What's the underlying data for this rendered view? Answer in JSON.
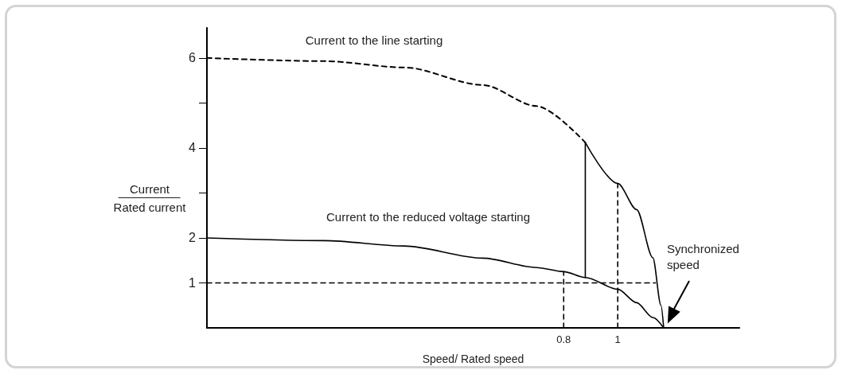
{
  "chart_data": {
    "type": "line",
    "xlabel": "Speed/ Rated speed",
    "ylabel": "Current\nRated current",
    "xlim": [
      -0.52,
      1.45
    ],
    "xticks": [
      0.8,
      1
    ],
    "ylim": [
      0,
      6.67
    ],
    "yticks": [
      1,
      2,
      4,
      {
        "value": 3,
        "label": null
      },
      {
        "value": 5,
        "label": null
      },
      6
    ],
    "grid": false,
    "marker": "none",
    "series": [
      {
        "color": "#000000",
        "line_style": "dashed",
        "x": [
          -0.52,
          -0.085,
          0.21,
          0.5,
          0.7,
          0.88
        ],
        "values": [
          6,
          5.93,
          5.79,
          5.4,
          4.93,
          4.12
        ]
      },
      {
        "color": "#000000",
        "line_style": "solid",
        "x": [
          0.88,
          1.0,
          1.07,
          1.13,
          1.16,
          1.17
        ],
        "values": [
          4.12,
          3.21,
          2.63,
          1.56,
          0.5,
          0
        ]
      },
      {
        "color": "#000000",
        "line_style": "solid",
        "x": [
          -0.52,
          -0.085,
          0.21,
          0.5,
          0.7,
          0.8,
          0.88,
          1.0,
          1.07,
          1.13,
          1.17
        ],
        "values": [
          2,
          1.94,
          1.82,
          1.55,
          1.34,
          1.25,
          1.12,
          0.86,
          0.56,
          0.23,
          0
        ]
      },
      {
        "color": "#000000",
        "line_style": "solid",
        "x": [
          0.88,
          0.88
        ],
        "values": [
          1.12,
          4.12
        ]
      },
      {
        "color": "#000000",
        "line_style": "dashed",
        "x": [
          -0.52,
          1.14
        ],
        "values": [
          1,
          1
        ]
      },
      {
        "color": "#000000",
        "line_style": "dashed",
        "x": [
          0.8,
          0.8
        ],
        "values": [
          0,
          1.25
        ]
      },
      {
        "color": "#000000",
        "line_style": "dashed",
        "x": [
          1,
          1
        ],
        "values": [
          0,
          3.21
        ]
      }
    ],
    "annotations": [
      "Current to the line starting",
      "Current to the reduced voltage starting",
      "Synchronized speed"
    ]
  }
}
